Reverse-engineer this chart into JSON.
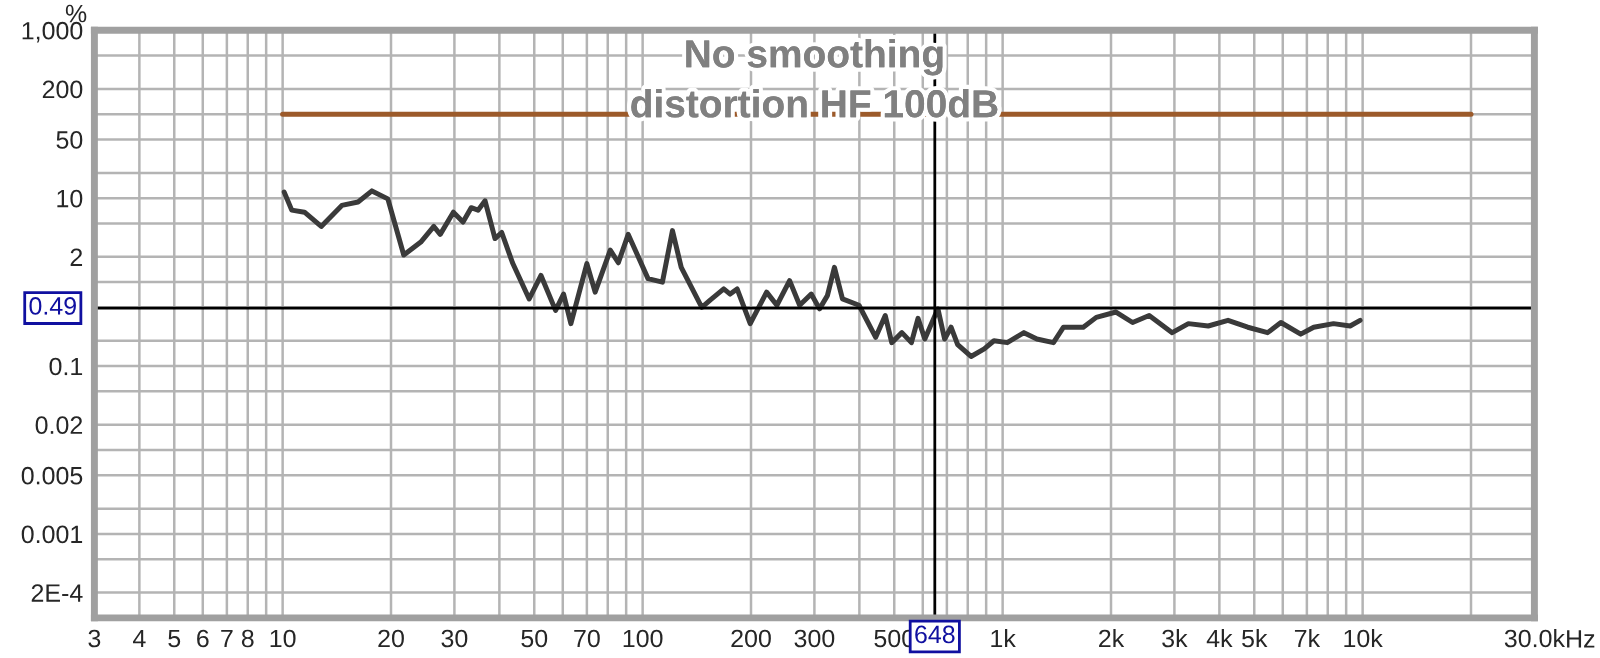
{
  "chart_data": {
    "type": "line",
    "title": "No smoothing",
    "subtitle": "distortion HF 100dB",
    "ylabel": "%",
    "log": "xy",
    "grid": true,
    "xlim": [
      3,
      30000
    ],
    "ylim": [
      0.0001,
      1000
    ],
    "xticks": [
      3,
      4,
      5,
      6,
      7,
      8,
      {
        "value": 9,
        "label": null
      },
      10,
      20,
      30,
      {
        "value": 40,
        "label": null
      },
      50,
      {
        "value": 60,
        "label": null
      },
      70,
      {
        "value": 80,
        "label": null
      },
      {
        "value": 90,
        "label": null
      },
      100,
      200,
      300,
      {
        "value": 400,
        "label": null
      },
      500,
      {
        "value": 600,
        "label": null
      },
      {
        "value": 700,
        "label": null
      },
      {
        "value": 800,
        "label": null
      },
      {
        "value": 900,
        "label": null
      },
      {
        "value": 1000,
        "label": "1k"
      },
      {
        "value": 2000,
        "label": "2k"
      },
      {
        "value": 3000,
        "label": "3k"
      },
      {
        "value": 4000,
        "label": "4k"
      },
      {
        "value": 5000,
        "label": "5k"
      },
      {
        "value": 6000,
        "label": null
      },
      {
        "value": 7000,
        "label": "7k"
      },
      {
        "value": 8000,
        "label": null
      },
      {
        "value": 9000,
        "label": null
      },
      {
        "value": 10000,
        "label": "10k"
      },
      {
        "value": 20000,
        "label": null
      },
      {
        "value": 30000,
        "label": "30.0k"
      }
    ],
    "xlabel": "Hz",
    "yticks": [
      {
        "value": 1000,
        "label": "1,000"
      },
      {
        "value": 500,
        "label": null
      },
      200,
      {
        "value": 100,
        "label": null
      },
      50,
      {
        "value": 20,
        "label": null
      },
      10,
      {
        "value": 5,
        "label": null
      },
      2,
      {
        "value": 1,
        "label": null
      },
      {
        "value": 0.5,
        "label": null
      },
      {
        "value": 0.2,
        "label": null
      },
      0.1,
      {
        "value": 0.05,
        "label": null
      },
      0.02,
      {
        "value": 0.01,
        "label": null
      },
      0.005,
      {
        "value": 0.002,
        "label": null
      },
      0.001,
      {
        "value": 0.0005,
        "label": null
      },
      {
        "value": 0.0002,
        "label": "2E-4"
      }
    ],
    "ref_lines": [
      {
        "axis": "x",
        "value": 648,
        "label": "648",
        "color": "#000000"
      },
      {
        "axis": "y",
        "value": 0.49,
        "label": "0.49",
        "color": "#000000"
      }
    ],
    "series": [
      {
        "color": "#9c5a2a",
        "x": [
          10,
          20000
        ],
        "values": [
          100,
          100
        ]
      },
      {
        "color": "#3a3a3a",
        "x": [
          10.1,
          10.6,
          11.5,
          12.8,
          14.6,
          16.2,
          17.7,
          19.6,
          21.7,
          24.2,
          26.3,
          27.4,
          29.8,
          31.7,
          33.4,
          34.9,
          36.5,
          38.9,
          40.6,
          43.5,
          48.4,
          52.2,
          57.3,
          60.3,
          63.2,
          70.0,
          73.8,
          81.3,
          85.6,
          91.2,
          103.5,
          113.5,
          121,
          128,
          146,
          154,
          168,
          175,
          183,
          199,
          221,
          236,
          256,
          273,
          294,
          310,
          326,
          341,
          359,
          399,
          444,
          472,
          492,
          525,
          558,
          582,
          608,
          661,
          690,
          719,
          750,
          817,
          889,
          946,
          1030,
          1146,
          1245,
          1384,
          1476,
          1675,
          1820,
          2065,
          2296,
          2553,
          2958,
          3281,
          3724,
          4227,
          4797,
          5445,
          5928,
          6730,
          7313,
          8300,
          9230,
          9840
        ],
        "values": [
          11.8,
          7.2,
          6.8,
          4.6,
          8.2,
          9.0,
          12.2,
          9.8,
          2.1,
          3.0,
          4.6,
          3.7,
          6.8,
          5.2,
          7.7,
          7.2,
          9.3,
          3.3,
          3.9,
          1.7,
          0.63,
          1.2,
          0.46,
          0.72,
          0.32,
          1.66,
          0.76,
          2.4,
          1.7,
          3.7,
          1.1,
          1.0,
          4.1,
          1.5,
          0.5,
          0.61,
          0.83,
          0.72,
          0.83,
          0.32,
          0.76,
          0.53,
          1.04,
          0.53,
          0.72,
          0.48,
          0.69,
          1.5,
          0.63,
          0.53,
          0.22,
          0.4,
          0.19,
          0.25,
          0.19,
          0.37,
          0.21,
          0.48,
          0.21,
          0.29,
          0.18,
          0.13,
          0.16,
          0.2,
          0.19,
          0.25,
          0.21,
          0.19,
          0.29,
          0.29,
          0.38,
          0.44,
          0.33,
          0.4,
          0.25,
          0.32,
          0.3,
          0.35,
          0.29,
          0.25,
          0.33,
          0.24,
          0.29,
          0.32,
          0.3,
          0.35
        ]
      }
    ]
  }
}
